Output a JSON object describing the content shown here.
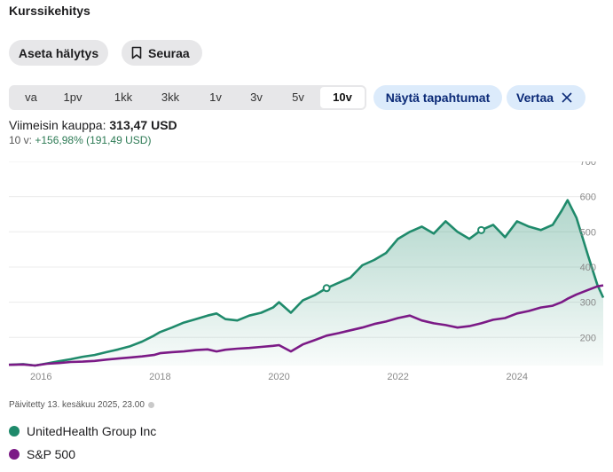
{
  "header": {
    "title": "Kurssikehitys"
  },
  "actions": {
    "alert_label": "Aseta hälytys",
    "follow_label": "Seuraa"
  },
  "periods": [
    "va",
    "1pv",
    "1kk",
    "3kk",
    "1v",
    "3v",
    "5v",
    "10v"
  ],
  "active_period": "10v",
  "pills": {
    "events_label": "Näytä tapahtumat",
    "compare_label": "Vertaa"
  },
  "quote": {
    "last_label": "Viimeisin kauppa:",
    "last_value": "313,47 USD",
    "change_period": "10 v:",
    "change_value": "+156,98% (191,49 USD)"
  },
  "updated": "Päivitetty 13. kesäkuu 2025, 23.00",
  "colors": {
    "unh": "#1f8a6b",
    "spx": "#7b1a86",
    "accent": "#0b2a77"
  },
  "chart_data": {
    "type": "area",
    "title": "",
    "xlabel": "",
    "ylabel": "",
    "x_ticks": [
      "2016",
      "2018",
      "2020",
      "2022",
      "2024"
    ],
    "y_ticks": [
      200,
      300,
      400,
      500,
      600,
      700
    ],
    "xlim": [
      2015.46,
      2025.45
    ],
    "ylim": [
      120,
      700
    ],
    "grid": true,
    "series": [
      {
        "name": "UnitedHealth Group Inc",
        "x": [
          2015.46,
          2015.7,
          2015.9,
          2016.1,
          2016.3,
          2016.5,
          2016.7,
          2016.9,
          2017.1,
          2017.3,
          2017.5,
          2017.7,
          2017.9,
          2018.0,
          2018.2,
          2018.4,
          2018.6,
          2018.8,
          2018.95,
          2019.1,
          2019.3,
          2019.5,
          2019.7,
          2019.9,
          2020.0,
          2020.2,
          2020.4,
          2020.6,
          2020.8,
          2021.0,
          2021.2,
          2021.4,
          2021.6,
          2021.8,
          2022.0,
          2022.2,
          2022.4,
          2022.6,
          2022.8,
          2023.0,
          2023.2,
          2023.4,
          2023.6,
          2023.8,
          2024.0,
          2024.2,
          2024.4,
          2024.6,
          2024.75,
          2024.85,
          2025.0,
          2025.2,
          2025.35,
          2025.45
        ],
        "y": [
          122,
          124,
          120,
          126,
          132,
          138,
          145,
          150,
          158,
          166,
          175,
          188,
          205,
          215,
          228,
          242,
          252,
          262,
          268,
          252,
          248,
          262,
          270,
          285,
          300,
          270,
          305,
          320,
          340,
          355,
          370,
          405,
          420,
          440,
          480,
          500,
          515,
          495,
          530,
          500,
          480,
          505,
          520,
          485,
          530,
          515,
          505,
          520,
          560,
          590,
          540,
          430,
          350,
          313
        ]
      },
      {
        "name": "S&P 500",
        "x": [
          2015.46,
          2015.7,
          2015.9,
          2016.1,
          2016.3,
          2016.5,
          2016.7,
          2016.9,
          2017.1,
          2017.3,
          2017.5,
          2017.7,
          2017.9,
          2018.0,
          2018.2,
          2018.4,
          2018.6,
          2018.8,
          2018.95,
          2019.1,
          2019.3,
          2019.5,
          2019.7,
          2019.9,
          2020.0,
          2020.2,
          2020.4,
          2020.6,
          2020.8,
          2021.0,
          2021.2,
          2021.4,
          2021.6,
          2021.8,
          2022.0,
          2022.2,
          2022.4,
          2022.6,
          2022.8,
          2023.0,
          2023.2,
          2023.4,
          2023.6,
          2023.8,
          2024.0,
          2024.2,
          2024.4,
          2024.6,
          2024.75,
          2024.85,
          2025.0,
          2025.2,
          2025.35,
          2025.45
        ],
        "y": [
          122,
          123,
          120,
          125,
          127,
          130,
          131,
          133,
          137,
          140,
          143,
          146,
          150,
          155,
          158,
          160,
          164,
          166,
          160,
          165,
          168,
          170,
          173,
          176,
          178,
          160,
          180,
          192,
          205,
          212,
          220,
          228,
          238,
          245,
          255,
          262,
          248,
          240,
          235,
          228,
          232,
          240,
          250,
          255,
          268,
          275,
          285,
          290,
          300,
          310,
          322,
          335,
          345,
          348
        ]
      }
    ]
  }
}
